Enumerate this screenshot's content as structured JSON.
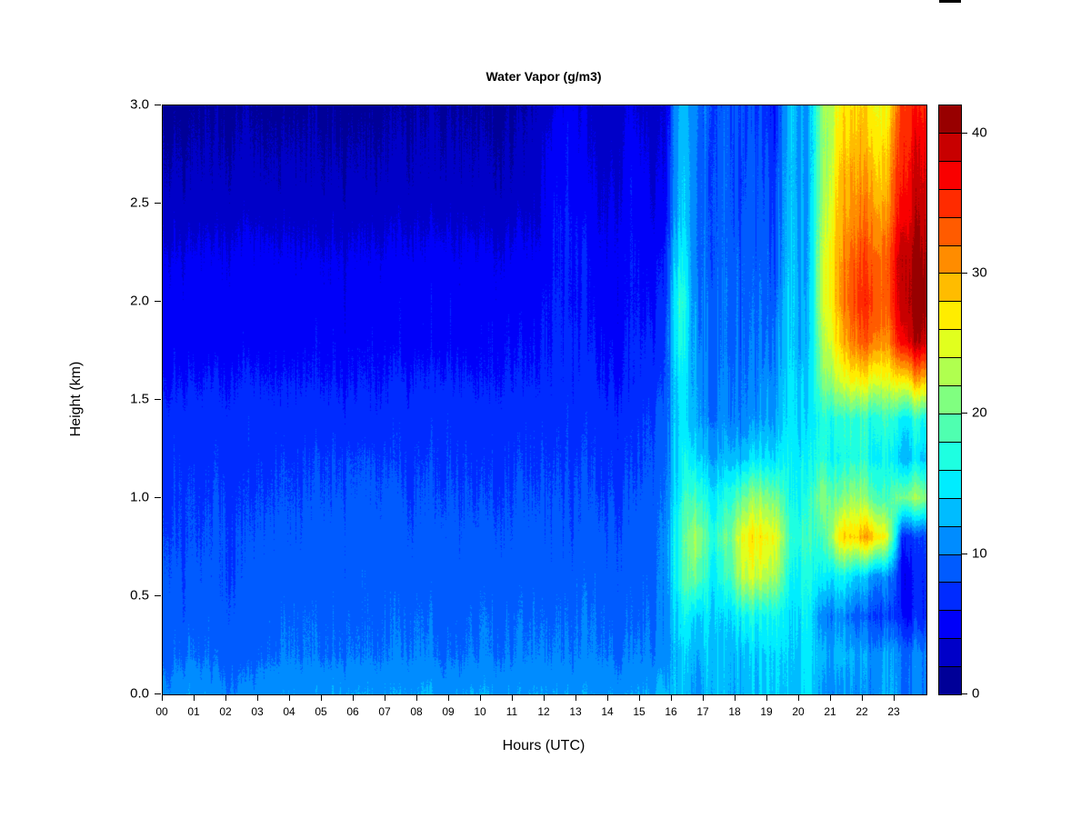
{
  "title": "Water Vapor (g/m3)",
  "x_axis": {
    "label": "Hours (UTC)",
    "ticks": [
      "00",
      "01",
      "02",
      "03",
      "04",
      "05",
      "06",
      "07",
      "08",
      "09",
      "10",
      "11",
      "12",
      "13",
      "14",
      "15",
      "16",
      "17",
      "18",
      "19",
      "20",
      "21",
      "22",
      "23"
    ]
  },
  "y_axis": {
    "label": "Height (km)",
    "ticks": [
      "0.0",
      "0.5",
      "1.0",
      "1.5",
      "2.0",
      "2.5",
      "3.0"
    ],
    "tick_values": [
      0.0,
      0.5,
      1.0,
      1.5,
      2.0,
      2.5,
      3.0
    ]
  },
  "colorbar": {
    "tick_values": [
      0,
      10,
      20,
      30,
      40
    ],
    "tick_labels": [
      "0",
      "10",
      "20",
      "30",
      "40"
    ],
    "min": 0,
    "max": 42,
    "bin_size": 2,
    "palette_bottom_to_top": [
      "#000098",
      "#0000C8",
      "#0000F9",
      "#002BFF",
      "#005BFF",
      "#008CFF",
      "#00BCFF",
      "#00EDFF",
      "#1EFFE1",
      "#4FFFB0",
      "#80FF80",
      "#B0FF4F",
      "#E1FF1E",
      "#FFED00",
      "#FFBC00",
      "#FF8C00",
      "#FF5B00",
      "#FF2B00",
      "#F90000",
      "#C80000",
      "#980000"
    ]
  },
  "chart_data": {
    "type": "heatmap",
    "title": "Water Vapor (g/m3)",
    "xlabel": "Hours (UTC)",
    "ylabel": "Height (km)",
    "x_range_hours": [
      0,
      24
    ],
    "x_step_hours": 0.5,
    "heights_km_top_to_bottom": [
      3.0,
      2.8,
      2.6,
      2.4,
      2.2,
      2.0,
      1.8,
      1.6,
      1.4,
      1.2,
      1.0,
      0.8,
      0.6,
      0.4,
      0.2,
      0.0
    ],
    "value_range": [
      0,
      42
    ],
    "legend_position": "right-colorbar",
    "grid": false,
    "values_g_m3": [
      [
        1.5,
        1.5,
        1.5,
        1.5,
        1.5,
        1.5,
        1.5,
        1.5,
        1.5,
        1.5,
        1.5,
        1.5,
        1.5,
        1.5,
        1.5,
        1.5,
        1.5,
        1.5,
        1.5,
        1.5,
        1.5,
        1.5,
        1.5,
        2,
        3.5,
        5,
        3.5,
        2.5,
        3,
        4,
        3,
        2.5,
        13,
        11,
        7,
        9,
        8,
        7,
        5,
        14,
        9,
        22,
        26,
        28,
        27,
        24,
        36,
        36
      ],
      [
        2,
        2,
        2,
        2,
        2,
        2,
        2,
        2,
        2,
        2,
        2,
        2,
        2,
        2,
        2,
        2,
        2,
        2,
        2,
        2,
        2,
        2,
        2,
        2.5,
        4.5,
        5.5,
        4,
        3,
        3.5,
        4.5,
        3.5,
        3,
        13,
        11,
        7,
        9,
        8,
        7.5,
        5.5,
        14,
        9,
        21,
        27,
        29,
        28,
        26,
        37,
        38
      ],
      [
        2.5,
        2.5,
        2.5,
        2.5,
        2.5,
        2.5,
        2.5,
        2.5,
        2.5,
        2.5,
        2.5,
        2.5,
        2.5,
        2.5,
        2.5,
        2.5,
        2.5,
        2.5,
        2.5,
        2.5,
        2.5,
        2.5,
        2.5,
        3,
        5,
        5.5,
        4.5,
        3.5,
        4,
        5,
        4,
        3.5,
        13.5,
        11,
        7,
        9,
        8,
        8,
        6,
        14,
        9,
        22,
        28,
        30,
        30,
        27,
        38,
        39
      ],
      [
        3.5,
        3.5,
        3.5,
        3.5,
        3.5,
        3.5,
        3.5,
        3.5,
        3.5,
        3.5,
        3.5,
        3.5,
        3.5,
        3.5,
        3.5,
        3.5,
        3.5,
        3.5,
        3.5,
        3.5,
        3.5,
        3.5,
        3.5,
        3.5,
        5.5,
        6,
        5,
        4,
        4.5,
        5,
        4.5,
        4,
        14,
        11,
        7.5,
        9,
        8,
        8,
        6.5,
        14,
        9.5,
        23,
        29,
        31,
        32,
        29,
        39,
        40
      ],
      [
        4.5,
        4.5,
        4.5,
        4.5,
        4.5,
        4.5,
        4.5,
        4.5,
        4.5,
        4.5,
        4.5,
        4.5,
        4.5,
        4.5,
        4.5,
        4.5,
        4.5,
        4.5,
        4.5,
        4.5,
        4.5,
        4.5,
        4.5,
        4.5,
        5.5,
        6,
        5.5,
        4.5,
        5,
        5.5,
        5,
        5,
        16,
        11,
        7.5,
        9.5,
        8.5,
        8.5,
        7,
        14,
        9.5,
        24,
        30,
        33,
        34,
        31,
        41,
        41
      ],
      [
        5,
        5,
        5,
        5,
        5,
        5,
        5,
        5,
        5,
        5,
        5,
        5,
        5,
        5,
        5,
        5,
        5,
        5,
        5,
        5,
        5,
        5,
        5,
        5,
        6,
        6,
        5.5,
        5,
        5,
        5.5,
        5.5,
        5.5,
        18,
        11.5,
        8,
        10,
        8.5,
        9,
        7.5,
        14.5,
        10,
        24,
        30,
        34,
        35,
        31,
        41,
        42
      ],
      [
        5,
        5,
        5,
        5,
        5,
        5,
        5,
        5,
        5,
        5.5,
        5.5,
        5.5,
        5.5,
        5.5,
        5,
        5,
        5,
        5,
        5,
        5,
        5.5,
        5.5,
        5.5,
        5.5,
        6,
        6.5,
        6,
        5.5,
        5.5,
        6,
        6,
        6.5,
        17,
        12,
        8,
        10,
        9,
        9.5,
        8.5,
        14.5,
        10,
        23,
        28,
        32,
        33,
        29,
        39,
        40
      ],
      [
        6,
        6,
        6,
        6,
        6,
        6,
        6,
        6,
        6,
        6,
        6,
        6,
        6,
        6,
        6,
        6,
        6,
        6,
        6,
        6,
        6,
        6,
        6,
        6,
        6.5,
        6.5,
        6.5,
        6,
        6,
        6,
        6.5,
        7,
        15,
        12.5,
        8.5,
        10.5,
        9.5,
        10,
        9.5,
        15,
        11,
        21,
        24,
        26,
        26,
        24,
        28,
        30
      ],
      [
        7,
        7,
        7,
        7,
        7,
        7,
        7,
        7,
        7,
        7,
        7,
        7,
        7,
        7,
        7,
        7,
        7,
        7,
        7,
        7,
        7,
        7,
        7,
        7,
        7,
        7,
        7,
        7,
        7,
        7,
        7.5,
        8,
        14.5,
        13,
        9,
        11,
        10,
        11,
        10.5,
        15,
        12,
        17,
        17,
        17,
        17,
        17,
        16,
        17
      ],
      [
        7.5,
        7.5,
        7,
        7.5,
        7,
        7,
        7.5,
        7.5,
        7.5,
        8,
        8,
        8,
        8,
        8,
        7.5,
        7.5,
        7.5,
        7.5,
        7.5,
        7.5,
        7.5,
        7.5,
        7.5,
        7.5,
        7.5,
        7.5,
        7.5,
        7.5,
        7.5,
        7.5,
        8,
        8.5,
        15,
        15,
        11,
        13,
        13,
        14,
        13,
        15.5,
        13.5,
        17,
        16,
        17,
        16,
        15,
        14,
        14
      ],
      [
        7.5,
        8,
        7.5,
        8,
        7.5,
        7.5,
        8,
        8,
        8,
        8.5,
        8.5,
        8.5,
        8.5,
        8.5,
        8.5,
        8,
        8,
        8,
        8,
        8,
        8,
        8,
        8,
        8,
        8,
        8,
        8,
        8,
        8,
        8,
        8.5,
        9,
        16,
        19,
        14,
        17,
        20,
        21,
        19,
        16,
        15,
        21,
        20,
        22,
        20,
        17,
        22,
        22
      ],
      [
        8,
        8,
        8,
        8.5,
        8,
        8,
        8.5,
        8.5,
        8.5,
        9,
        9,
        9,
        9,
        9,
        9,
        8.5,
        8.5,
        8.5,
        8.5,
        8.5,
        8.5,
        8.5,
        8.5,
        8.5,
        8.5,
        8.5,
        8.5,
        8.5,
        8.5,
        8.5,
        8.5,
        9.5,
        17,
        23,
        16,
        20,
        26,
        26,
        24,
        18,
        16,
        18,
        27,
        28,
        30,
        24,
        8,
        8
      ],
      [
        8.5,
        8.5,
        8.5,
        8.5,
        8,
        8.5,
        9,
        9,
        9,
        9,
        9.5,
        9,
        9.5,
        9,
        9,
        9,
        9,
        8.5,
        9,
        9,
        9,
        9,
        9,
        9,
        9,
        9,
        9,
        9,
        9,
        9,
        9,
        9.5,
        17,
        21,
        14,
        18,
        24,
        23,
        21,
        16,
        15,
        15,
        16,
        14,
        12,
        10,
        6,
        7
      ],
      [
        9,
        9,
        9,
        9,
        8.5,
        8.5,
        9,
        9.5,
        9.5,
        9.5,
        9.5,
        9.5,
        9.5,
        9.5,
        9.5,
        9.5,
        9.5,
        9,
        9,
        9.5,
        9.5,
        9.5,
        9.5,
        9.5,
        9.5,
        9.5,
        9.5,
        9.5,
        9.5,
        9.5,
        9.5,
        9.5,
        15,
        15,
        13,
        14,
        16,
        15,
        15,
        14,
        14,
        10,
        12,
        9,
        8,
        7,
        7,
        7
      ],
      [
        9.5,
        10,
        9.5,
        9.5,
        9,
        9,
        9.5,
        10,
        10,
        10,
        10,
        10,
        10,
        10,
        10,
        10,
        10,
        9.5,
        9.5,
        10,
        10,
        10,
        10,
        10,
        10,
        10,
        10,
        10,
        10,
        10,
        10,
        10,
        13.5,
        13,
        12.5,
        13,
        13,
        13,
        13,
        13.5,
        13.5,
        12,
        13,
        12,
        11,
        11,
        11,
        11
      ],
      [
        11,
        12,
        11,
        11,
        10,
        10.5,
        11,
        11.5,
        11.5,
        11.5,
        12,
        12,
        12,
        11.5,
        11.5,
        11.5,
        12,
        11,
        11.5,
        12,
        12,
        11.5,
        11.5,
        11.5,
        11.5,
        11.5,
        11.5,
        11.5,
        11.5,
        11.5,
        11.5,
        12,
        13,
        12,
        12,
        12.5,
        12.5,
        12.5,
        12.5,
        13,
        13,
        11,
        11,
        11,
        11,
        11,
        11,
        11
      ]
    ]
  }
}
